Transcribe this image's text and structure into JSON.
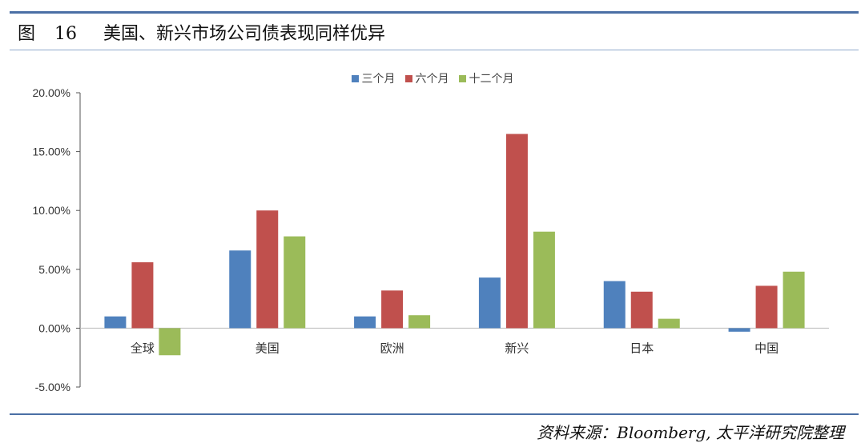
{
  "header": {
    "figure_label": "图",
    "figure_number": "16",
    "title": "美国、新兴市场公司债表现同样优异"
  },
  "source": "资料来源：Bloomberg, 太平洋研究院整理",
  "chart_data": {
    "type": "bar",
    "categories": [
      "全球",
      "美国",
      "欧洲",
      "新兴",
      "日本",
      "中国"
    ],
    "series": [
      {
        "name": "三个月",
        "color": "#4f81bd",
        "values": [
          1.0,
          6.6,
          1.0,
          4.3,
          4.0,
          -0.3
        ]
      },
      {
        "name": "六个月",
        "color": "#c0504d",
        "values": [
          5.6,
          10.0,
          3.2,
          16.5,
          3.1,
          3.6
        ]
      },
      {
        "name": "十二个月",
        "color": "#9bbb59",
        "values": [
          -2.3,
          7.8,
          1.1,
          8.2,
          0.8,
          4.8
        ]
      }
    ],
    "ylim": [
      -5,
      20
    ],
    "yticks": [
      -5,
      0,
      5,
      10,
      15,
      20
    ],
    "ytick_labels": [
      "-5.00%",
      "0.00%",
      "5.00%",
      "10.00%",
      "15.00%",
      "20.00%"
    ],
    "grid": false,
    "legend_position": "top-center"
  }
}
